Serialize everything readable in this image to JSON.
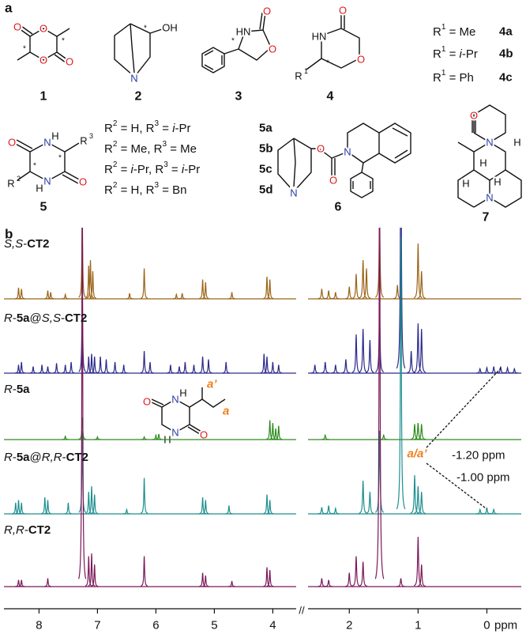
{
  "panel_a": {
    "label": "a",
    "compounds": [
      {
        "number": "1",
        "atoms": [
          "O",
          "O",
          "O",
          "O",
          "*",
          "*"
        ]
      },
      {
        "number": "2",
        "atoms": [
          "N",
          "OH",
          "*"
        ]
      },
      {
        "number": "3",
        "atoms": [
          "HN",
          "O",
          "O",
          "*"
        ]
      },
      {
        "number": "4",
        "atoms": [
          "HN",
          "O",
          "O",
          "R",
          "1",
          "*"
        ]
      },
      {
        "number": "5",
        "atoms": [
          "O",
          "N",
          "H",
          "N",
          "H",
          "O",
          "R",
          "3",
          "R",
          "2",
          "*",
          "*"
        ]
      },
      {
        "number": "6",
        "atoms": [
          "O",
          "O",
          "N",
          "N"
        ]
      },
      {
        "number": "7",
        "atoms": [
          "O",
          "N",
          "N",
          "H",
          "H",
          "H",
          "H"
        ]
      }
    ],
    "definitions": [
      {
        "segments": [
          {
            "text": "R"
          },
          {
            "text": "1",
            "sup": true
          },
          {
            "text": " = Me"
          }
        ],
        "code": "4a"
      },
      {
        "segments": [
          {
            "text": "R"
          },
          {
            "text": "1",
            "sup": true
          },
          {
            "text": " = "
          },
          {
            "text": "i",
            "italic": true
          },
          {
            "text": "-Pr"
          }
        ],
        "code": "4b"
      },
      {
        "segments": [
          {
            "text": "R"
          },
          {
            "text": "1",
            "sup": true
          },
          {
            "text": " = Ph"
          }
        ],
        "code": "4c"
      },
      {
        "segments": [
          {
            "text": "R"
          },
          {
            "text": "2",
            "sup": true
          },
          {
            "text": " = H, R"
          },
          {
            "text": "3",
            "sup": true
          },
          {
            "text": " = "
          },
          {
            "text": "i",
            "italic": true
          },
          {
            "text": "-Pr"
          }
        ],
        "code": "5a"
      },
      {
        "segments": [
          {
            "text": "R"
          },
          {
            "text": "2",
            "sup": true
          },
          {
            "text": " = Me, R"
          },
          {
            "text": "3",
            "sup": true
          },
          {
            "text": " = Me"
          }
        ],
        "code": "5b"
      },
      {
        "segments": [
          {
            "text": "R"
          },
          {
            "text": "2",
            "sup": true
          },
          {
            "text": " = "
          },
          {
            "text": "i",
            "italic": true
          },
          {
            "text": "-Pr, R"
          },
          {
            "text": "3",
            "sup": true
          },
          {
            "text": " = "
          },
          {
            "text": "i",
            "italic": true
          },
          {
            "text": "-Pr"
          }
        ],
        "code": "5c"
      },
      {
        "segments": [
          {
            "text": "R"
          },
          {
            "text": "2",
            "sup": true
          },
          {
            "text": " = H, R"
          },
          {
            "text": "3",
            "sup": true
          },
          {
            "text": " = Bn"
          }
        ],
        "code": "5d"
      }
    ]
  },
  "panel_b": {
    "label": "b",
    "spectra": [
      {
        "label": [
          {
            "text": "S,S",
            "italic": true
          },
          {
            "text": "-"
          },
          {
            "text": "CT2",
            "bold": true
          }
        ],
        "color": "#9a6418",
        "peaks": [
          [
            8.35,
            20
          ],
          [
            8.3,
            18
          ],
          [
            7.85,
            15
          ],
          [
            7.8,
            12
          ],
          [
            7.55,
            8
          ],
          [
            7.26,
            150
          ],
          [
            7.15,
            60
          ],
          [
            7.12,
            70
          ],
          [
            7.08,
            50
          ],
          [
            6.45,
            10
          ],
          [
            6.2,
            55
          ],
          [
            5.65,
            8
          ],
          [
            5.55,
            10
          ],
          [
            5.2,
            35
          ],
          [
            5.15,
            30
          ],
          [
            4.7,
            12
          ],
          [
            4.1,
            40
          ],
          [
            4.05,
            35
          ],
          [
            2.4,
            18
          ],
          [
            2.3,
            15
          ],
          [
            2.2,
            12
          ],
          [
            2.0,
            22
          ],
          [
            1.9,
            45
          ],
          [
            1.8,
            70
          ],
          [
            1.75,
            55
          ],
          [
            1.56,
            150
          ],
          [
            1.3,
            25
          ],
          [
            1.0,
            100
          ],
          [
            0.95,
            50
          ]
        ]
      },
      {
        "label": [
          {
            "text": "R",
            "italic": true
          },
          {
            "text": "-"
          },
          {
            "text": "5a",
            "bold": true
          },
          {
            "text": "@"
          },
          {
            "text": "S,S",
            "italic": true
          },
          {
            "text": "-"
          },
          {
            "text": "CT2",
            "bold": true
          }
        ],
        "color": "#2b2a8c",
        "peaks": [
          [
            8.35,
            15
          ],
          [
            8.3,
            20
          ],
          [
            8.1,
            12
          ],
          [
            7.95,
            15
          ],
          [
            7.85,
            12
          ],
          [
            7.7,
            18
          ],
          [
            7.55,
            15
          ],
          [
            7.45,
            20
          ],
          [
            7.26,
            150
          ],
          [
            7.15,
            30
          ],
          [
            7.1,
            35
          ],
          [
            7.05,
            30
          ],
          [
            6.95,
            30
          ],
          [
            6.85,
            25
          ],
          [
            6.7,
            20
          ],
          [
            6.55,
            15
          ],
          [
            6.2,
            40
          ],
          [
            6.1,
            20
          ],
          [
            5.75,
            15
          ],
          [
            5.6,
            12
          ],
          [
            5.5,
            20
          ],
          [
            5.35,
            15
          ],
          [
            5.2,
            30
          ],
          [
            5.1,
            25
          ],
          [
            4.8,
            20
          ],
          [
            4.15,
            35
          ],
          [
            4.1,
            30
          ],
          [
            4.0,
            20
          ],
          [
            3.9,
            15
          ],
          [
            2.5,
            15
          ],
          [
            2.35,
            20
          ],
          [
            2.2,
            15
          ],
          [
            2.05,
            25
          ],
          [
            1.9,
            70
          ],
          [
            1.8,
            80
          ],
          [
            1.7,
            60
          ],
          [
            1.56,
            120
          ],
          [
            1.25,
            500
          ],
          [
            1.1,
            40
          ],
          [
            1.0,
            90
          ],
          [
            0.95,
            80
          ],
          [
            0.1,
            8
          ],
          [
            0.0,
            10
          ],
          [
            -0.1,
            12
          ],
          [
            -0.2,
            12
          ],
          [
            -0.3,
            10
          ],
          [
            -0.4,
            8
          ]
        ]
      },
      {
        "label": [
          {
            "text": "R",
            "italic": true
          },
          {
            "text": "-"
          },
          {
            "text": "5a",
            "bold": true
          }
        ],
        "color": "#2e8b1e",
        "peaks": [
          [
            7.55,
            6
          ],
          [
            7.26,
            40
          ],
          [
            7.0,
            5
          ],
          [
            6.2,
            5
          ],
          [
            6.0,
            8
          ],
          [
            5.95,
            10
          ],
          [
            4.05,
            35
          ],
          [
            4.0,
            30
          ],
          [
            3.95,
            20
          ],
          [
            3.9,
            25
          ],
          [
            2.35,
            8
          ],
          [
            1.5,
            8
          ],
          [
            1.05,
            28
          ],
          [
            1.0,
            30
          ],
          [
            0.95,
            28
          ]
        ]
      },
      {
        "label": [
          {
            "text": "R",
            "italic": true
          },
          {
            "text": "-"
          },
          {
            "text": "5a",
            "bold": true
          },
          {
            "text": "@"
          },
          {
            "text": "R,R",
            "italic": true
          },
          {
            "text": "-"
          },
          {
            "text": "CT2",
            "bold": true
          }
        ],
        "color": "#1f8f8f",
        "peaks": [
          [
            8.4,
            20
          ],
          [
            8.35,
            25
          ],
          [
            8.3,
            20
          ],
          [
            7.9,
            30
          ],
          [
            7.85,
            25
          ],
          [
            7.5,
            20
          ],
          [
            7.26,
            150
          ],
          [
            7.15,
            40
          ],
          [
            7.1,
            50
          ],
          [
            7.05,
            35
          ],
          [
            6.5,
            8
          ],
          [
            6.2,
            65
          ],
          [
            5.2,
            30
          ],
          [
            5.15,
            25
          ],
          [
            4.75,
            15
          ],
          [
            4.1,
            35
          ],
          [
            4.05,
            25
          ],
          [
            2.4,
            12
          ],
          [
            2.3,
            15
          ],
          [
            2.2,
            10
          ],
          [
            1.8,
            60
          ],
          [
            1.7,
            40
          ],
          [
            1.56,
            150
          ],
          [
            1.25,
            500
          ],
          [
            1.05,
            70
          ],
          [
            1.0,
            50
          ],
          [
            0.95,
            40
          ],
          [
            0.1,
            8
          ],
          [
            0.0,
            10
          ],
          [
            -0.1,
            8
          ]
        ]
      },
      {
        "label": [
          {
            "text": "R,R",
            "italic": true
          },
          {
            "text": "-"
          },
          {
            "text": "CT2",
            "bold": true
          }
        ],
        "color": "#7a1a5a",
        "peaks": [
          [
            8.35,
            12
          ],
          [
            8.3,
            12
          ],
          [
            7.85,
            15
          ],
          [
            7.26,
            800
          ],
          [
            7.15,
            55
          ],
          [
            7.1,
            60
          ],
          [
            7.05,
            40
          ],
          [
            6.2,
            55
          ],
          [
            5.2,
            25
          ],
          [
            5.15,
            20
          ],
          [
            4.7,
            10
          ],
          [
            4.1,
            35
          ],
          [
            4.05,
            30
          ],
          [
            2.4,
            15
          ],
          [
            2.3,
            12
          ],
          [
            2.0,
            25
          ],
          [
            1.9,
            55
          ],
          [
            1.8,
            45
          ],
          [
            1.56,
            800
          ],
          [
            1.25,
            15
          ],
          [
            1.0,
            90
          ],
          [
            0.95,
            40
          ]
        ]
      }
    ],
    "x_axis": {
      "segments": [
        {
          "xlim": [
            8.6,
            3.6
          ],
          "xticks": [
            8,
            7,
            6,
            5,
            4
          ]
        },
        {
          "xlim": [
            2.6,
            -0.5
          ],
          "xticks": [
            2,
            1,
            0
          ]
        }
      ],
      "unit": "ppm",
      "break": "//"
    },
    "inset": {
      "atoms": [
        "O",
        "H",
        "N",
        "N",
        "H",
        "O"
      ],
      "labels": [
        "a’",
        "a"
      ]
    },
    "annotations": {
      "assignment": "a/a’",
      "shift_1": "-1.20 ppm",
      "shift_2": "-1.00 ppm"
    }
  }
}
